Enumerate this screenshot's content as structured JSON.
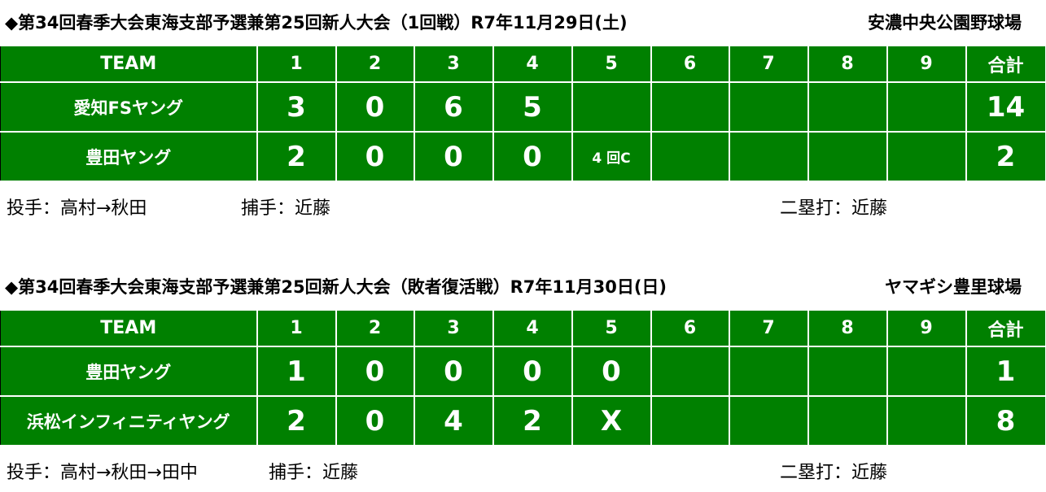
{
  "games": [
    {
      "title": "◆第34回春季大会東海支部予選兼第25回新人大会（1回戦）R7年11月29日(土)",
      "venue": "安濃中央公園野球場",
      "header": {
        "team": "TEAM",
        "innings": [
          1,
          2,
          3,
          4,
          5,
          6,
          7,
          8,
          9
        ],
        "total": "合計"
      },
      "rows": [
        {
          "team": "愛知FSヤング",
          "innings": [
            3,
            0,
            6,
            5,
            null,
            null,
            null,
            null,
            null
          ],
          "total": 14
        },
        {
          "team": "豊田ヤング",
          "innings": [
            2,
            0,
            0,
            0,
            "4 回C",
            null,
            null,
            null,
            null
          ],
          "total": 2
        }
      ],
      "notes": {
        "pitcher": "投手：高村→秋田",
        "catcher": "捕手：近藤",
        "double": "二塁打：近藤"
      }
    },
    {
      "title": "◆第34回春季大会東海支部予選兼第25回新人大会（敗者復活戦）R7年11月30日(日)",
      "venue": "ヤマギシ豊里球場",
      "header": {
        "team": "TEAM",
        "innings": [
          1,
          2,
          3,
          4,
          5,
          6,
          7,
          8,
          9
        ],
        "total": "合計"
      },
      "rows": [
        {
          "team": "豊田ヤング",
          "innings": [
            1,
            0,
            0,
            0,
            0,
            null,
            null,
            null,
            null
          ],
          "total": 1
        },
        {
          "team": "浜松インフィニティヤング",
          "innings": [
            2,
            0,
            4,
            2,
            "X",
            null,
            null,
            null,
            null
          ],
          "total": 8
        }
      ],
      "notes": {
        "pitcher": "投手：高村→秋田→田中",
        "catcher": "捕手：近藤",
        "double": "二塁打：近藤"
      }
    }
  ]
}
